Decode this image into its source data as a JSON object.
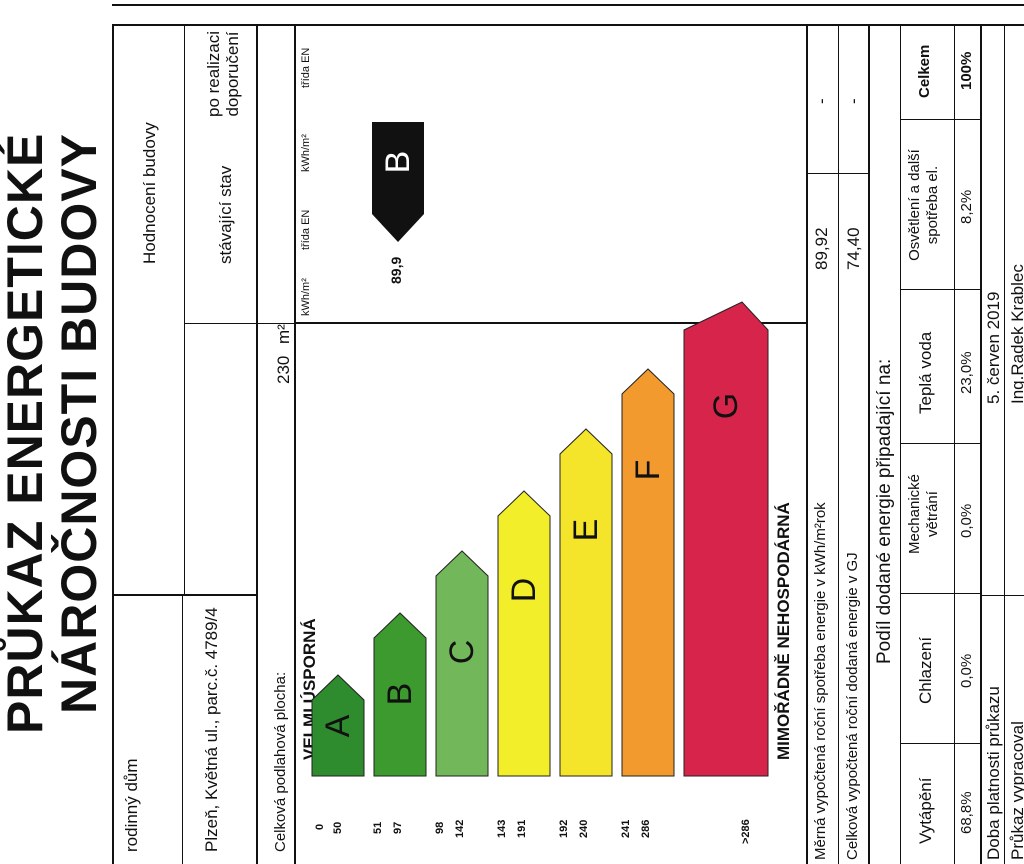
{
  "title": {
    "line1": "PRŮKAZ ENERGETICKÉ",
    "line2": "NÁROČNOSTI BUDOVY"
  },
  "building": {
    "type": "rodinný dům",
    "address": "Plzeň, Květná ul., parc.č. 4789/4",
    "floor_area_label": "Celková podlahová plocha:",
    "floor_area_value": "230",
    "floor_area_unit": "m²"
  },
  "rating_header": {
    "title": "Hodnocení budovy",
    "col_current": "stávající stav",
    "col_after": "po realizaci doporučení",
    "unit": "kWh/m²",
    "class_label": "třída EN"
  },
  "scale": {
    "top_label": "VELMI ÚSPORNÁ",
    "bottom_label": "MIMOŘÁDNĚ NEHOSPODÁRNÁ",
    "bands": [
      {
        "letter": "A",
        "from": "0",
        "to": "50",
        "color": "#2e8b2e"
      },
      {
        "letter": "B",
        "from": "51",
        "to": "97",
        "color": "#3c9a2e"
      },
      {
        "letter": "C",
        "from": "98",
        "to": "142",
        "color": "#72b85a"
      },
      {
        "letter": "D",
        "from": "143",
        "to": "191",
        "color": "#f2ef2a"
      },
      {
        "letter": "E",
        "from": "192",
        "to": "240",
        "color": "#f5e52a"
      },
      {
        "letter": "F",
        "from": "241",
        "to": "286",
        "color": "#f29a2e"
      },
      {
        "letter": "G",
        "from": ">286",
        "to": "",
        "color": "#d6244a"
      }
    ]
  },
  "current_rating": {
    "value": "89,9",
    "class": "B"
  },
  "metrics": [
    {
      "label": "Měrná vypočtená roční spotřeba energie v kWh/m²rok",
      "current": "89,92",
      "after": "-"
    },
    {
      "label": "Celková vypočtená roční dodaná energie v GJ",
      "current": "74,40",
      "after": "-"
    }
  ],
  "shares": {
    "title": "Podíl dodané energie připadající na:",
    "columns": [
      "Vytápění",
      "Chlazení",
      "Mechanické větrání",
      "Teplá voda",
      "Osvětlení a další spotřeba el.",
      "Celkem"
    ],
    "values": [
      "68,8%",
      "0,0%",
      "0,0%",
      "23,0%",
      "8,2%",
      "100%"
    ]
  },
  "validity": {
    "label": "Doba platnosti průkazu",
    "value": "5. červen 2019"
  },
  "author": {
    "label": "Průkaz vypracoval",
    "value": "Ing.Radek Krablec"
  }
}
